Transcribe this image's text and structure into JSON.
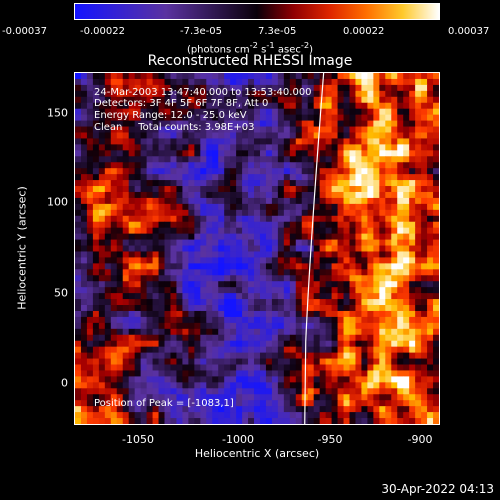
{
  "colorbar": {
    "ticks": [
      "-0.00037",
      "-0.00022",
      "-7.3e-05",
      "7.3e-05",
      "0.00022",
      "0.00037"
    ],
    "units_text": "(photons cm",
    "units_sup1": "-2",
    "units_mid": " s",
    "units_sup2": "-1",
    "units_end": " asec",
    "units_sup3": "-2",
    "units_close": ")"
  },
  "title": "Reconstructed RHESSI Image",
  "info": {
    "time_range": "24-Mar-2003 13:47:40.000 to 13:53:40.000",
    "detectors": "Detectors: 3F 4F 5F 6F 7F 8F, Att 0",
    "energy": "Energy Range: 12.0 - 25.0 keV",
    "clean": "Clean     Total counts: 3.98E+03"
  },
  "peak_text": "Position of Peak = [-1083,1]",
  "axes": {
    "xlabel": "Heliocentric X (arcsec)",
    "ylabel": "Heliocentric Y (arcsec)",
    "xticks": [
      "-1050",
      "-1000",
      "-950",
      "-900"
    ],
    "yticks": [
      "0",
      "50",
      "100",
      "150"
    ]
  },
  "footer_date": "30-Apr-2022 04:13",
  "colors": {
    "low": "#1a20ff",
    "mid": "#5a2a90",
    "high_orange": "#ff7a00",
    "high_yellow": "#ffff40",
    "limb_line": "#ffffff"
  }
}
